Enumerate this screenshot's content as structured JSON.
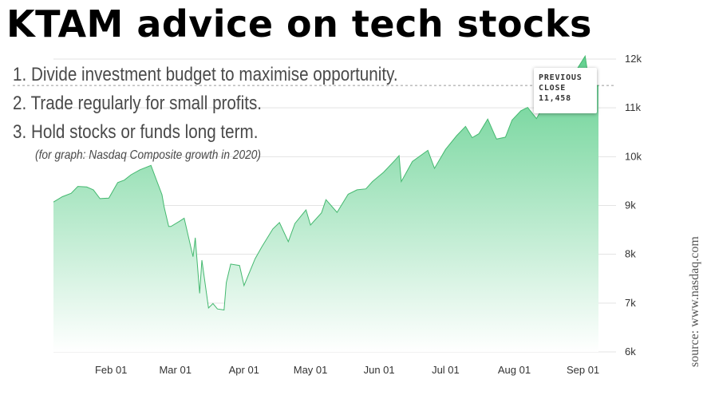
{
  "headline": "KTAM advice on tech stocks",
  "advice": [
    "1. Divide investment budget to maximise opportunity.",
    "2. Trade regularly for small profits.",
    "3. Hold stocks or funds long term."
  ],
  "graph_note": "(for graph: Nasdaq Composite growth in 2020)",
  "source": "source: www.nasdaq.com",
  "tooltip": {
    "line1": "PREVIOUS",
    "line2": "CLOSE",
    "value": "11,458"
  },
  "colors": {
    "area_top": "#62d08f",
    "area_bottom": "#ffffff",
    "line": "#44b86f",
    "grid": "#e3e3e3",
    "text": "#4a4a4a"
  },
  "chart_data": {
    "type": "area",
    "title": "",
    "xlabel": "",
    "ylabel": "",
    "x_ticks": [
      "Feb 01",
      "Mar 01",
      "Apr 01",
      "May 01",
      "Jun 01",
      "Jul 01",
      "Aug 01",
      "Sep 01"
    ],
    "y_ticks": [
      "6k",
      "7k",
      "8k",
      "9k",
      "10k",
      "11k",
      "12k"
    ],
    "ylim": [
      6000,
      12000
    ],
    "xlim": [
      "2020-01-06",
      "2020-09-08"
    ],
    "grid": true,
    "previous_close": 11458,
    "series": [
      {
        "points": [
          [
            "2020-01-06",
            9070
          ],
          [
            "2020-01-10",
            9180
          ],
          [
            "2020-01-14",
            9250
          ],
          [
            "2020-01-17",
            9390
          ],
          [
            "2020-01-21",
            9380
          ],
          [
            "2020-01-24",
            9320
          ],
          [
            "2020-01-27",
            9140
          ],
          [
            "2020-01-31",
            9150
          ],
          [
            "2020-02-04",
            9470
          ],
          [
            "2020-02-07",
            9520
          ],
          [
            "2020-02-10",
            9630
          ],
          [
            "2020-02-14",
            9730
          ],
          [
            "2020-02-19",
            9820
          ],
          [
            "2020-02-21",
            9580
          ],
          [
            "2020-02-24",
            9220
          ],
          [
            "2020-02-25",
            8960
          ],
          [
            "2020-02-27",
            8570
          ],
          [
            "2020-02-28",
            8570
          ],
          [
            "2020-03-03",
            8680
          ],
          [
            "2020-03-05",
            8740
          ],
          [
            "2020-03-09",
            7950
          ],
          [
            "2020-03-10",
            8340
          ],
          [
            "2020-03-12",
            7200
          ],
          [
            "2020-03-13",
            7880
          ],
          [
            "2020-03-16",
            6900
          ],
          [
            "2020-03-18",
            6990
          ],
          [
            "2020-03-20",
            6880
          ],
          [
            "2020-03-23",
            6860
          ],
          [
            "2020-03-24",
            7420
          ],
          [
            "2020-03-26",
            7800
          ],
          [
            "2020-03-30",
            7770
          ],
          [
            "2020-04-01",
            7360
          ],
          [
            "2020-04-06",
            7910
          ],
          [
            "2020-04-09",
            8150
          ],
          [
            "2020-04-14",
            8520
          ],
          [
            "2020-04-17",
            8650
          ],
          [
            "2020-04-21",
            8260
          ],
          [
            "2020-04-24",
            8630
          ],
          [
            "2020-04-29",
            8910
          ],
          [
            "2020-05-01",
            8600
          ],
          [
            "2020-05-06",
            8850
          ],
          [
            "2020-05-08",
            9120
          ],
          [
            "2020-05-13",
            8860
          ],
          [
            "2020-05-18",
            9230
          ],
          [
            "2020-05-22",
            9320
          ],
          [
            "2020-05-26",
            9340
          ],
          [
            "2020-05-29",
            9490
          ],
          [
            "2020-06-03",
            9680
          ],
          [
            "2020-06-08",
            9920
          ],
          [
            "2020-06-10",
            10020
          ],
          [
            "2020-06-11",
            9490
          ],
          [
            "2020-06-16",
            9900
          ],
          [
            "2020-06-23",
            10130
          ],
          [
            "2020-06-26",
            9760
          ],
          [
            "2020-07-01",
            10150
          ],
          [
            "2020-07-06",
            10430
          ],
          [
            "2020-07-10",
            10620
          ],
          [
            "2020-07-13",
            10390
          ],
          [
            "2020-07-16",
            10470
          ],
          [
            "2020-07-20",
            10770
          ],
          [
            "2020-07-23",
            10460
          ],
          [
            "2020-07-24",
            10360
          ],
          [
            "2020-07-28",
            10400
          ],
          [
            "2020-07-31",
            10750
          ],
          [
            "2020-08-04",
            10940
          ],
          [
            "2020-08-07",
            11010
          ],
          [
            "2020-08-11",
            10780
          ],
          [
            "2020-08-14",
            11020
          ],
          [
            "2020-08-19",
            11150
          ],
          [
            "2020-08-24",
            11380
          ],
          [
            "2020-08-28",
            11700
          ],
          [
            "2020-09-02",
            12060
          ],
          [
            "2020-09-04",
            11450
          ],
          [
            "2020-09-08",
            11458
          ]
        ]
      }
    ]
  }
}
